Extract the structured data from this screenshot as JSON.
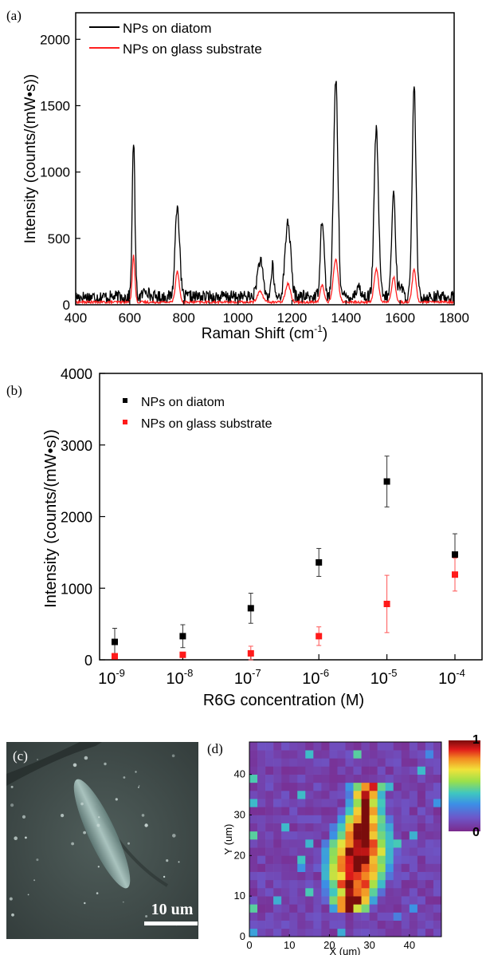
{
  "panel_labels": {
    "a": "(a)",
    "b": "(b)",
    "c": "(c)",
    "d": "(d)"
  },
  "chart_data": [
    {
      "type": "line",
      "panel": "(a)",
      "xlabel": "Raman Shift (cm",
      "xlabel_sup": "-1",
      "xlabel_end": ")",
      "ylabel": "Intensity (counts/(mW•s))",
      "xlim": [
        400,
        1800
      ],
      "ylim": [
        0,
        2200
      ],
      "xticks": [
        400,
        600,
        800,
        1000,
        1200,
        1400,
        1600,
        1800
      ],
      "yticks": [
        0,
        500,
        1000,
        1500,
        2000
      ],
      "legend_position": "top-left",
      "series": [
        {
          "name": "NPs on diatom",
          "color": "#000000",
          "baseline": 60,
          "peaks": [
            [
              614,
              1180,
              5
            ],
            [
              660,
              60,
              8
            ],
            [
              776,
              700,
              8
            ],
            [
              1082,
              270,
              10
            ],
            [
              1128,
              230,
              5
            ],
            [
              1185,
              570,
              10
            ],
            [
              1312,
              600,
              7
            ],
            [
              1362,
              1640,
              8
            ],
            [
              1512,
              1260,
              8
            ],
            [
              1576,
              780,
              7
            ],
            [
              1602,
              100,
              6
            ],
            [
              1652,
              1570,
              7
            ],
            [
              1445,
              80,
              8
            ]
          ]
        },
        {
          "name": "NPs on glass substrate",
          "color": "#ff2020",
          "baseline": 20,
          "peaks": [
            [
              614,
              350,
              5
            ],
            [
              776,
              235,
              7
            ],
            [
              1082,
              80,
              10
            ],
            [
              1185,
              140,
              9
            ],
            [
              1312,
              130,
              7
            ],
            [
              1362,
              320,
              9
            ],
            [
              1512,
              250,
              8
            ],
            [
              1576,
              190,
              7
            ],
            [
              1652,
              250,
              7
            ]
          ]
        }
      ]
    },
    {
      "type": "scatter",
      "panel": "(b)",
      "xlabel": "R6G concentration (M)",
      "ylabel": "Intensity (counts/(mW•s))",
      "ylim": [
        0,
        4000
      ],
      "yticks": [
        0,
        1000,
        2000,
        3000,
        4000
      ],
      "categories": [
        "10-9",
        "10-8",
        "10-7",
        "10-6",
        "10-5",
        "10-4"
      ],
      "tick_base": "10",
      "tick_exponents": [
        "-9",
        "-8",
        "-7",
        "-6",
        "-5",
        "-4"
      ],
      "legend_position": "top-left",
      "series": [
        {
          "name": "NPs on diatom",
          "color": "#000000",
          "values": [
            250,
            330,
            720,
            1360,
            2490,
            1470
          ],
          "errors": [
            190,
            160,
            210,
            195,
            355,
            290
          ]
        },
        {
          "name": "NPs on glass substrate",
          "color": "#ff1a1a",
          "values": [
            50,
            70,
            90,
            330,
            780,
            1190
          ],
          "errors": [
            30,
            20,
            100,
            130,
            400,
            230
          ]
        }
      ]
    },
    {
      "type": "heatmap",
      "panel": "(d)",
      "xlabel": "X (um)",
      "ylabel": "Y (um)",
      "xlim": [
        0,
        48
      ],
      "ylim": [
        0,
        48
      ],
      "xticks": [
        0,
        10,
        20,
        30,
        40
      ],
      "yticks": [
        0,
        10,
        20,
        30,
        40
      ],
      "grid_size": 24,
      "colorbar_max": "1",
      "colorbar_min": "0",
      "background_level": 0.0,
      "hotspot": {
        "x_center_start": 25,
        "y_start": 6,
        "x_center_end": 30,
        "y_end": 38
      }
    }
  ],
  "micrograph": {
    "panel": "(c)",
    "scale_bar_label": "10 um"
  }
}
